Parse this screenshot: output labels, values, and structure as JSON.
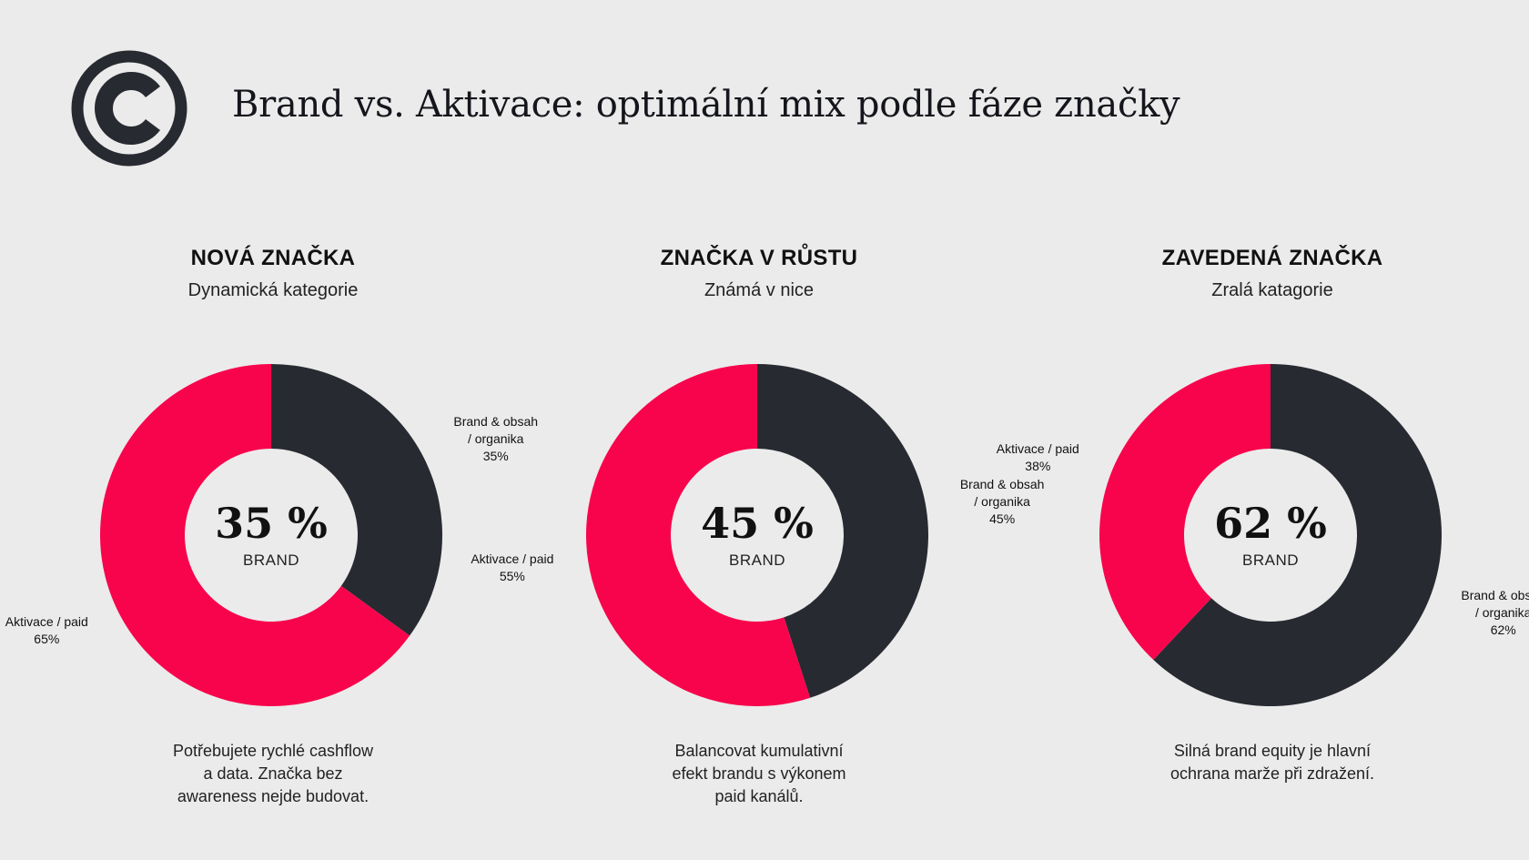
{
  "title": "Brand vs. Aktivace: optimální mix podle fáze značky",
  "logo_icon": "copyright-icon",
  "colors": {
    "brand": "#282a31",
    "activation": "#f8044c",
    "background": "#ebebeb"
  },
  "chart_data": [
    {
      "type": "pie",
      "title": "NOVÁ ZNAČKA",
      "subtitle": "Dynamická kategorie",
      "center_value": "35 %",
      "center_label": "BRAND",
      "slices": [
        {
          "label_lines": [
            "Brand & obsah",
            "/ organika",
            "35%"
          ],
          "value": 35,
          "color": "#282a31"
        },
        {
          "label_lines": [
            "Aktivace / paid",
            "65%"
          ],
          "value": 65,
          "color": "#f8044c"
        }
      ],
      "note_lines": [
        "Potřebujete rychlé cashflow",
        "a data. Značka bez",
        "awareness nejde budovat."
      ]
    },
    {
      "type": "pie",
      "title": "ZNAČKA V RŮSTU",
      "subtitle": "Známá v nice",
      "center_value": "45 %",
      "center_label": "BRAND",
      "slices": [
        {
          "label_lines": [
            "Brand & obsah",
            "/ organika",
            "45%"
          ],
          "value": 45,
          "color": "#282a31"
        },
        {
          "label_lines": [
            "Aktivace / paid",
            "55%"
          ],
          "value": 55,
          "color": "#f8044c"
        }
      ],
      "note_lines": [
        "Balancovat kumulativní",
        "efekt brandu s výkonem",
        "paid kanálů."
      ]
    },
    {
      "type": "pie",
      "title": "ZAVEDENÁ ZNAČKA",
      "subtitle": "Zralá katagorie",
      "center_value": "62 %",
      "center_label": "BRAND",
      "slices": [
        {
          "label_lines": [
            "Brand & obsah",
            "/ organika",
            "62%"
          ],
          "value": 62,
          "color": "#282a31"
        },
        {
          "label_lines": [
            "Aktivace / paid",
            "38%"
          ],
          "value": 38,
          "color": "#f8044c"
        }
      ],
      "note_lines": [
        "Silná brand equity je hlavní",
        "ochrana marže při zdražení."
      ]
    }
  ]
}
